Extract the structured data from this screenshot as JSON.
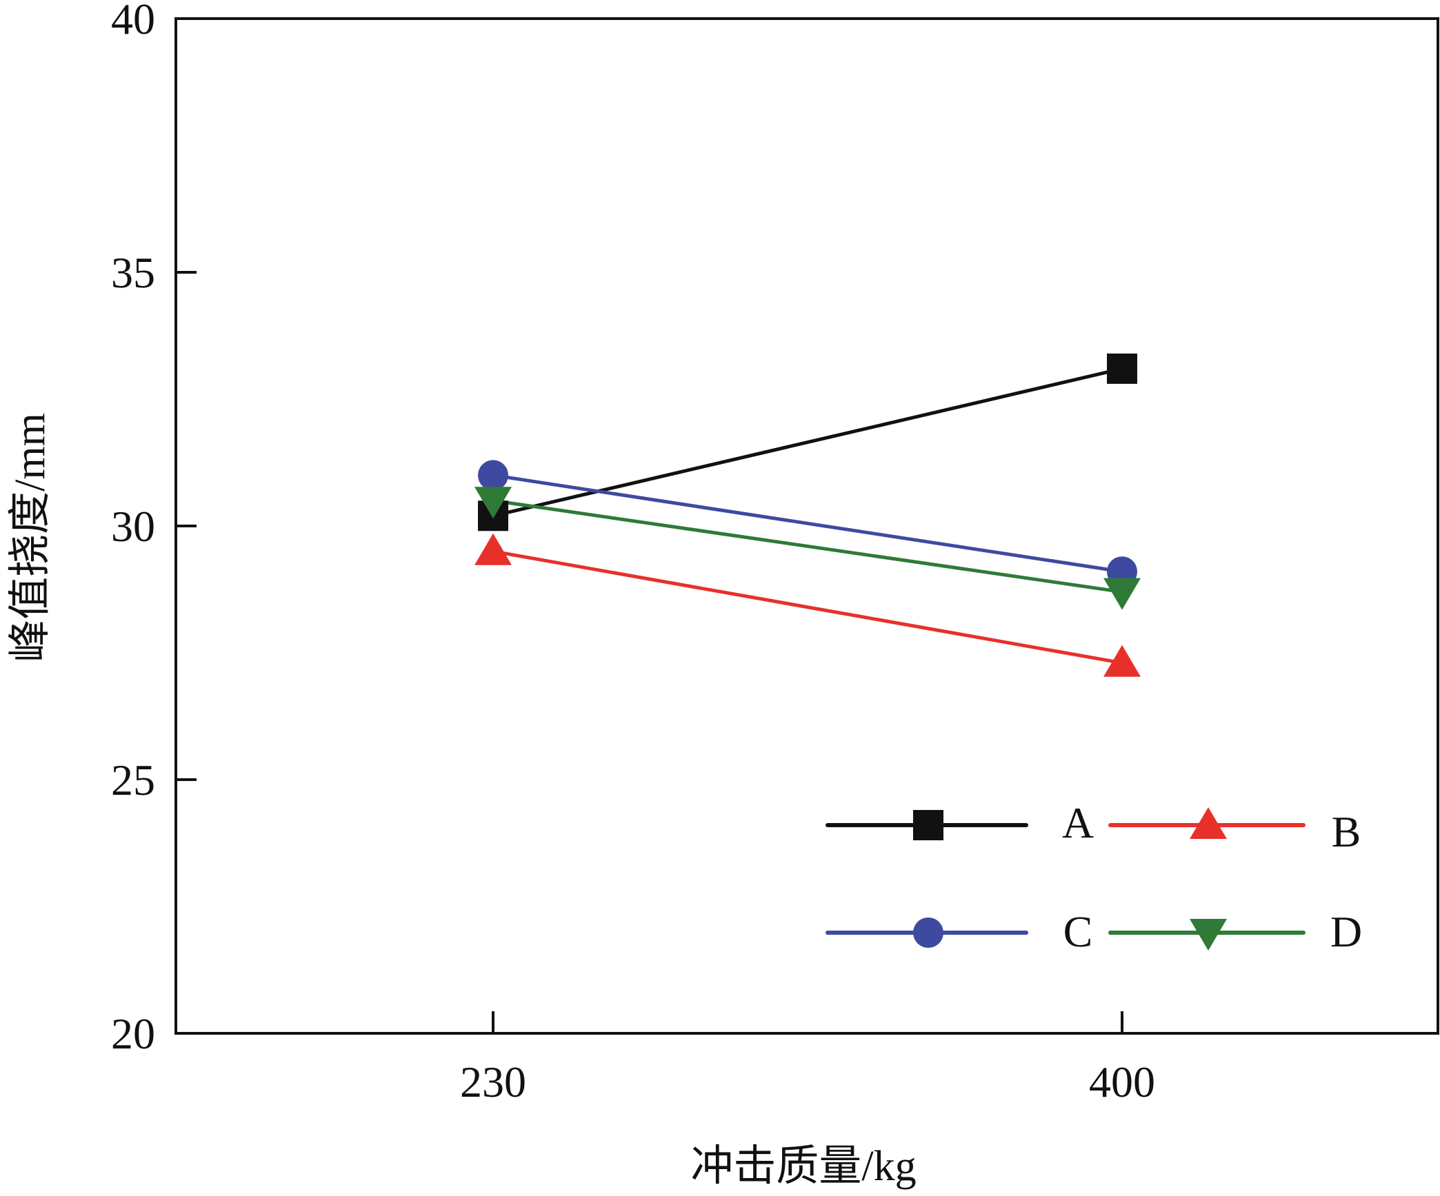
{
  "chart_data": {
    "type": "line",
    "xlabel": "冲击质量/kg",
    "ylabel": "峰值挠度/mm",
    "categories": [
      "230",
      "400"
    ],
    "ylim": [
      20,
      40
    ],
    "yticks": [
      "20",
      "25",
      "30",
      "35",
      "40"
    ],
    "grid": false,
    "legend_position": "bottom-right",
    "series": [
      {
        "name": "A",
        "values": [
          30.2,
          33.1
        ],
        "color": "#111111",
        "marker": "square"
      },
      {
        "name": "B",
        "values": [
          29.5,
          27.3
        ],
        "color": "#e8302b",
        "marker": "triangle-up"
      },
      {
        "name": "C",
        "values": [
          31.0,
          29.1
        ],
        "color": "#3e4aa0",
        "marker": "circle"
      },
      {
        "name": "D",
        "values": [
          30.5,
          28.7
        ],
        "color": "#2f7a36",
        "marker": "triangle-down"
      }
    ]
  }
}
